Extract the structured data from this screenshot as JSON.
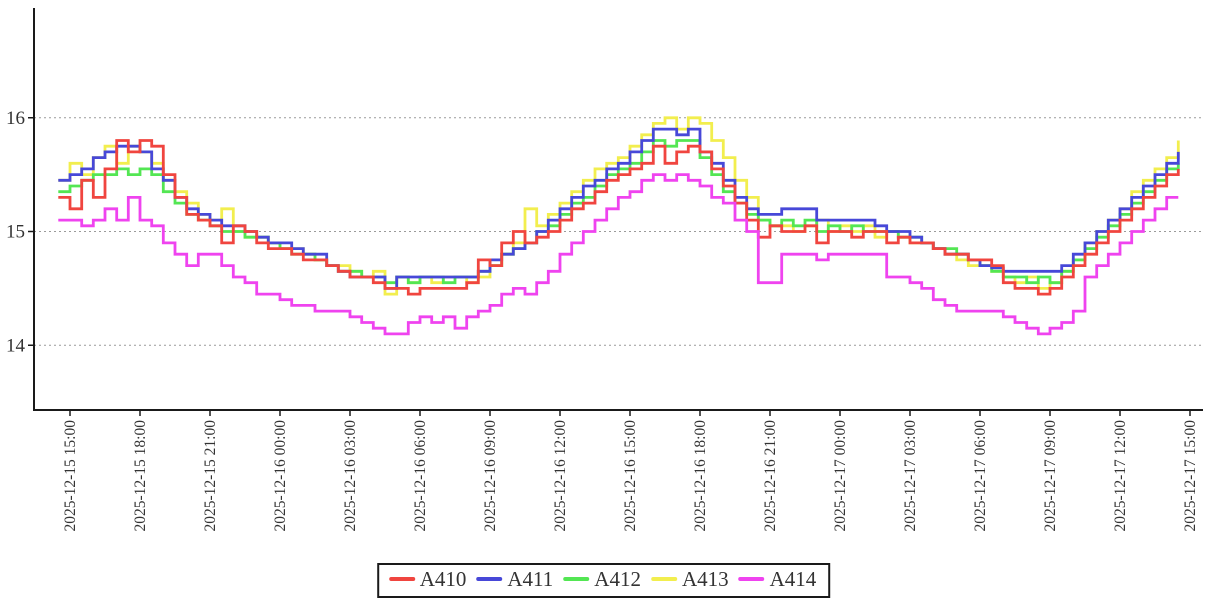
{
  "chart_data": {
    "type": "line",
    "title": "",
    "line_style": "step-after",
    "grid": "horizontal-dashed",
    "legend_position": "bottom-center",
    "x_axis": {
      "tick_interval_hours": 3,
      "tick_labels": [
        "2025-12-15 15:00",
        "2025-12-15 18:00",
        "2025-12-15 21:00",
        "2025-12-16 00:00",
        "2025-12-16 03:00",
        "2025-12-16 06:00",
        "2025-12-16 09:00",
        "2025-12-16 12:00",
        "2025-12-16 15:00",
        "2025-12-16 18:00",
        "2025-12-16 21:00",
        "2025-12-17 00:00",
        "2025-12-17 03:00",
        "2025-12-17 06:00",
        "2025-12-17 09:00",
        "2025-12-17 12:00",
        "2025-12-17 15:00"
      ]
    },
    "y_axis": {
      "ticks": [
        16,
        15,
        14
      ],
      "range_shown": [
        13.45,
        16.9
      ]
    },
    "sample_interval_hours": 0.5,
    "start_offset_hours": -0.5,
    "series": [
      {
        "name": "A410",
        "color": "#f0453f",
        "values": [
          15.3,
          15.2,
          15.45,
          15.3,
          15.55,
          15.8,
          15.7,
          15.8,
          15.75,
          15.5,
          15.3,
          15.15,
          15.1,
          15.05,
          14.9,
          15.05,
          15.0,
          14.9,
          14.85,
          14.85,
          14.8,
          14.75,
          14.75,
          14.7,
          14.65,
          14.6,
          14.6,
          14.55,
          14.5,
          14.5,
          14.45,
          14.5,
          14.5,
          14.5,
          14.5,
          14.55,
          14.75,
          14.7,
          14.9,
          15.0,
          14.9,
          14.95,
          15.0,
          15.1,
          15.2,
          15.25,
          15.35,
          15.45,
          15.5,
          15.55,
          15.6,
          15.75,
          15.6,
          15.7,
          15.75,
          15.7,
          15.55,
          15.4,
          15.25,
          15.1,
          14.95,
          15.05,
          15.0,
          15.0,
          15.05,
          14.9,
          15.0,
          15.0,
          14.95,
          15.0,
          15.0,
          14.9,
          14.95,
          14.9,
          14.9,
          14.85,
          14.8,
          14.8,
          14.75,
          14.75,
          14.7,
          14.55,
          14.5,
          14.5,
          14.45,
          14.5,
          14.6,
          14.7,
          14.8,
          14.9,
          15.0,
          15.1,
          15.2,
          15.3,
          15.4,
          15.5,
          15.55
        ]
      },
      {
        "name": "A411",
        "color": "#4748d8",
        "values": [
          15.45,
          15.5,
          15.55,
          15.65,
          15.7,
          15.75,
          15.75,
          15.7,
          15.55,
          15.45,
          15.3,
          15.2,
          15.15,
          15.1,
          15.05,
          15.05,
          15.0,
          14.95,
          14.9,
          14.9,
          14.85,
          14.8,
          14.8,
          14.7,
          14.65,
          14.6,
          14.6,
          14.6,
          14.5,
          14.6,
          14.6,
          14.6,
          14.6,
          14.6,
          14.6,
          14.6,
          14.65,
          14.75,
          14.8,
          14.85,
          14.9,
          15.0,
          15.1,
          15.2,
          15.3,
          15.4,
          15.45,
          15.55,
          15.6,
          15.7,
          15.8,
          15.9,
          15.9,
          15.85,
          15.9,
          15.7,
          15.6,
          15.45,
          15.3,
          15.2,
          15.15,
          15.15,
          15.2,
          15.2,
          15.2,
          15.1,
          15.1,
          15.1,
          15.1,
          15.1,
          15.05,
          15.0,
          15.0,
          14.95,
          14.9,
          14.85,
          14.8,
          14.8,
          14.75,
          14.7,
          14.68,
          14.65,
          14.65,
          14.65,
          14.65,
          14.65,
          14.7,
          14.8,
          14.9,
          15.0,
          15.1,
          15.2,
          15.3,
          15.4,
          15.5,
          15.6,
          15.7
        ]
      },
      {
        "name": "A412",
        "color": "#53e653",
        "values": [
          15.35,
          15.4,
          15.45,
          15.5,
          15.5,
          15.55,
          15.5,
          15.55,
          15.5,
          15.35,
          15.25,
          15.15,
          15.1,
          15.05,
          15.0,
          15.0,
          14.95,
          14.95,
          14.9,
          14.85,
          14.8,
          14.8,
          14.75,
          14.7,
          14.65,
          14.65,
          14.6,
          14.6,
          14.55,
          14.6,
          14.55,
          14.6,
          14.6,
          14.55,
          14.6,
          14.6,
          14.65,
          14.7,
          14.8,
          14.85,
          14.9,
          15.0,
          15.05,
          15.15,
          15.25,
          15.3,
          15.4,
          15.5,
          15.55,
          15.6,
          15.7,
          15.8,
          15.75,
          15.8,
          15.8,
          15.65,
          15.5,
          15.35,
          15.25,
          15.15,
          15.1,
          15.05,
          15.1,
          15.05,
          15.1,
          15.0,
          15.05,
          15.0,
          15.05,
          15.0,
          15.0,
          15.0,
          14.95,
          14.95,
          14.9,
          14.85,
          14.85,
          14.8,
          14.75,
          14.7,
          14.65,
          14.6,
          14.6,
          14.55,
          14.6,
          14.55,
          14.65,
          14.75,
          14.85,
          14.95,
          15.05,
          15.15,
          15.25,
          15.35,
          15.45,
          15.55,
          15.6
        ]
      },
      {
        "name": "A413",
        "color": "#f2ee4e",
        "values": [
          15.45,
          15.6,
          15.5,
          15.65,
          15.75,
          15.6,
          15.75,
          15.7,
          15.6,
          15.45,
          15.35,
          15.25,
          15.15,
          15.1,
          15.2,
          15.0,
          14.95,
          14.95,
          14.9,
          14.85,
          14.85,
          14.8,
          14.75,
          14.7,
          14.7,
          14.65,
          14.6,
          14.65,
          14.45,
          14.6,
          14.55,
          14.6,
          14.55,
          14.6,
          14.6,
          14.55,
          14.6,
          14.7,
          14.8,
          14.9,
          15.2,
          15.05,
          15.15,
          15.25,
          15.35,
          15.45,
          15.55,
          15.6,
          15.65,
          15.75,
          15.85,
          15.95,
          16.0,
          15.9,
          16.0,
          15.95,
          15.8,
          15.65,
          15.45,
          15.3,
          15.1,
          15.05,
          15.05,
          15.0,
          15.05,
          15.1,
          15.0,
          15.05,
          15.0,
          15.05,
          14.95,
          15.0,
          14.95,
          14.9,
          14.9,
          14.85,
          14.8,
          14.75,
          14.7,
          14.7,
          14.65,
          14.6,
          14.55,
          14.6,
          14.5,
          14.55,
          14.65,
          14.75,
          14.9,
          15.0,
          15.1,
          15.2,
          15.35,
          15.45,
          15.55,
          15.65,
          15.8
        ]
      },
      {
        "name": "A414",
        "color": "#ef43ef",
        "values": [
          15.1,
          15.1,
          15.05,
          15.1,
          15.2,
          15.1,
          15.3,
          15.1,
          15.05,
          14.9,
          14.8,
          14.7,
          14.8,
          14.8,
          14.7,
          14.6,
          14.55,
          14.45,
          14.45,
          14.4,
          14.35,
          14.35,
          14.3,
          14.3,
          14.3,
          14.25,
          14.2,
          14.15,
          14.1,
          14.1,
          14.2,
          14.25,
          14.2,
          14.25,
          14.15,
          14.25,
          14.3,
          14.35,
          14.45,
          14.5,
          14.45,
          14.55,
          14.65,
          14.8,
          14.9,
          15.0,
          15.1,
          15.2,
          15.3,
          15.35,
          15.45,
          15.5,
          15.45,
          15.5,
          15.45,
          15.4,
          15.3,
          15.25,
          15.1,
          15.0,
          14.55,
          14.55,
          14.8,
          14.8,
          14.8,
          14.75,
          14.8,
          14.8,
          14.8,
          14.8,
          14.8,
          14.6,
          14.6,
          14.55,
          14.5,
          14.4,
          14.35,
          14.3,
          14.3,
          14.3,
          14.3,
          14.25,
          14.2,
          14.15,
          14.1,
          14.15,
          14.2,
          14.3,
          14.6,
          14.7,
          14.8,
          14.9,
          15.0,
          15.1,
          15.2,
          15.3,
          15.3
        ]
      }
    ]
  }
}
